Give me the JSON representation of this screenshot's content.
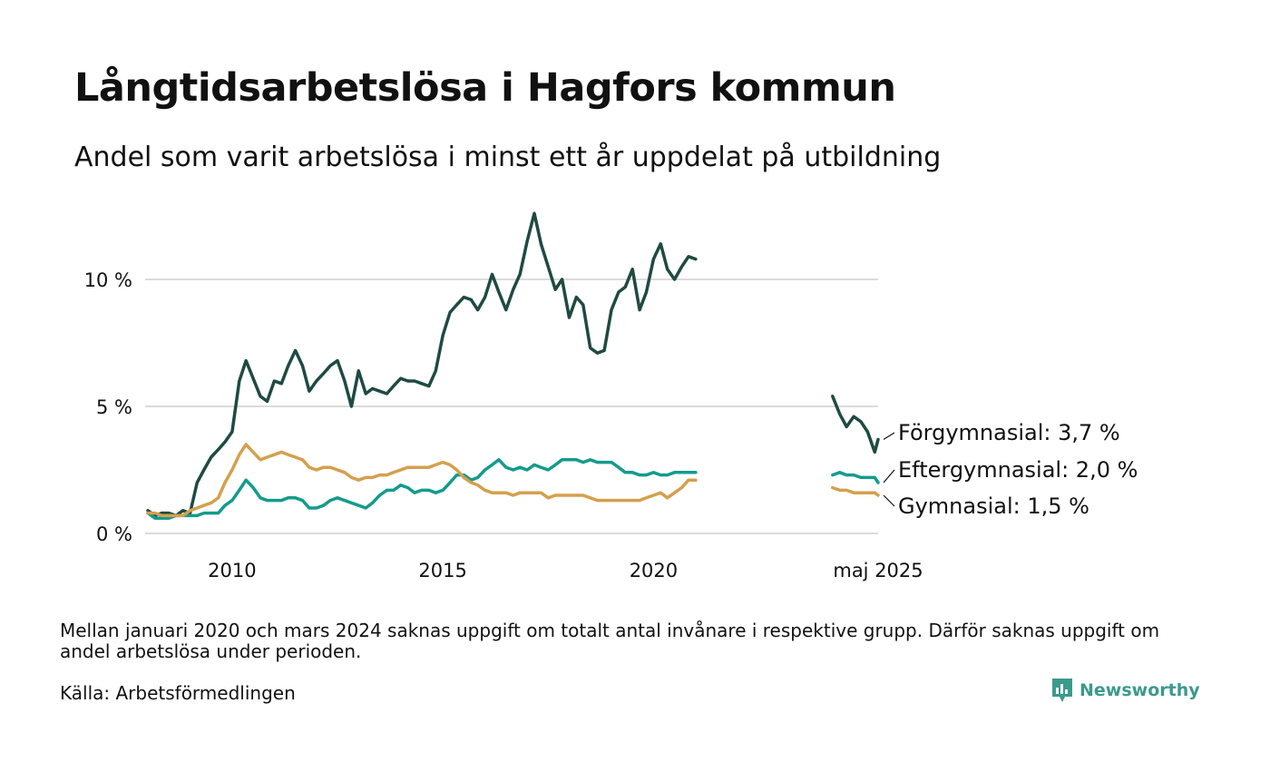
{
  "header": {
    "title": "Långtidsarbetslösa i Hagfors kommun",
    "subtitle": "Andel som varit arbetslösa i minst ett år uppdelat på utbildning"
  },
  "footer": {
    "note": "Mellan januari 2020 och mars 2024 saknas uppgift om totalt antal invånare i respektive grupp. Därför saknas uppgift om andel arbetslösa under perioden.",
    "source": "Källa: Arbetsförmedlingen",
    "brand": "Newsworthy",
    "brand_color": "#3a9a8c"
  },
  "chart_data": {
    "type": "line",
    "x_unit": "year",
    "y_unit": "%",
    "ylim": [
      0,
      12.8
    ],
    "y_ticks": [
      {
        "value": 0,
        "label": "0 %"
      },
      {
        "value": 5,
        "label": "5 %"
      },
      {
        "value": 10,
        "label": "10 %"
      }
    ],
    "x_ticks": [
      {
        "value": 2010.0,
        "label": "2010"
      },
      {
        "value": 2015.0,
        "label": "2015"
      },
      {
        "value": 2020.0,
        "label": "2020"
      },
      {
        "value": 2025.33,
        "label": "maj 2025"
      }
    ],
    "grid": true,
    "gap": "2021–2024",
    "series": [
      {
        "name": "Förgymnasial",
        "end_label": "Förgymnasial: 3,7 %",
        "color": "#1f4a43",
        "segments": [
          [
            [
              2008.0,
              0.9
            ],
            [
              2008.17,
              0.7
            ],
            [
              2008.33,
              0.8
            ],
            [
              2008.5,
              0.8
            ],
            [
              2008.67,
              0.7
            ],
            [
              2008.83,
              0.9
            ],
            [
              2009.0,
              0.8
            ],
            [
              2009.17,
              2.0
            ],
            [
              2009.33,
              2.5
            ],
            [
              2009.5,
              3.0
            ],
            [
              2009.67,
              3.3
            ],
            [
              2009.83,
              3.6
            ],
            [
              2010.0,
              4.0
            ],
            [
              2010.17,
              6.0
            ],
            [
              2010.33,
              6.8
            ],
            [
              2010.5,
              6.1
            ],
            [
              2010.67,
              5.4
            ],
            [
              2010.83,
              5.2
            ],
            [
              2011.0,
              6.0
            ],
            [
              2011.17,
              5.9
            ],
            [
              2011.33,
              6.6
            ],
            [
              2011.5,
              7.2
            ],
            [
              2011.67,
              6.6
            ],
            [
              2011.83,
              5.6
            ],
            [
              2012.0,
              6.0
            ],
            [
              2012.17,
              6.3
            ],
            [
              2012.33,
              6.6
            ],
            [
              2012.5,
              6.8
            ],
            [
              2012.67,
              6.0
            ],
            [
              2012.83,
              5.0
            ],
            [
              2013.0,
              6.4
            ],
            [
              2013.17,
              5.5
            ],
            [
              2013.33,
              5.7
            ],
            [
              2013.5,
              5.6
            ],
            [
              2013.67,
              5.5
            ],
            [
              2013.83,
              5.8
            ],
            [
              2014.0,
              6.1
            ],
            [
              2014.17,
              6.0
            ],
            [
              2014.33,
              6.0
            ],
            [
              2014.5,
              5.9
            ],
            [
              2014.67,
              5.8
            ],
            [
              2014.83,
              6.4
            ],
            [
              2015.0,
              7.8
            ],
            [
              2015.17,
              8.7
            ],
            [
              2015.33,
              9.0
            ],
            [
              2015.5,
              9.3
            ],
            [
              2015.67,
              9.2
            ],
            [
              2015.83,
              8.8
            ],
            [
              2016.0,
              9.3
            ],
            [
              2016.17,
              10.2
            ],
            [
              2016.33,
              9.5
            ],
            [
              2016.5,
              8.8
            ],
            [
              2016.67,
              9.6
            ],
            [
              2016.83,
              10.2
            ],
            [
              2017.0,
              11.5
            ],
            [
              2017.17,
              12.6
            ],
            [
              2017.33,
              11.4
            ],
            [
              2017.5,
              10.5
            ],
            [
              2017.67,
              9.6
            ],
            [
              2017.83,
              10.0
            ],
            [
              2018.0,
              8.5
            ],
            [
              2018.17,
              9.3
            ],
            [
              2018.33,
              9.0
            ],
            [
              2018.5,
              7.3
            ],
            [
              2018.67,
              7.1
            ],
            [
              2018.83,
              7.2
            ],
            [
              2019.0,
              8.8
            ],
            [
              2019.17,
              9.5
            ],
            [
              2019.33,
              9.7
            ],
            [
              2019.5,
              10.4
            ],
            [
              2019.67,
              8.8
            ],
            [
              2019.83,
              9.5
            ],
            [
              2020.0,
              10.8
            ],
            [
              2020.17,
              11.4
            ],
            [
              2020.33,
              10.4
            ],
            [
              2020.5,
              10.0
            ],
            [
              2020.67,
              10.5
            ],
            [
              2020.83,
              10.9
            ],
            [
              2021.0,
              10.8
            ]
          ],
          [
            [
              2024.25,
              5.4
            ],
            [
              2024.42,
              4.7
            ],
            [
              2024.58,
              4.2
            ],
            [
              2024.75,
              4.6
            ],
            [
              2024.92,
              4.4
            ],
            [
              2025.08,
              4.0
            ],
            [
              2025.25,
              3.2
            ],
            [
              2025.33,
              3.7
            ]
          ]
        ]
      },
      {
        "name": "Eftergymnasial",
        "end_label": "Eftergymnasial: 2,0 %",
        "color": "#149b8c",
        "segments": [
          [
            [
              2008.0,
              0.8
            ],
            [
              2008.17,
              0.6
            ],
            [
              2008.33,
              0.6
            ],
            [
              2008.5,
              0.6
            ],
            [
              2008.67,
              0.7
            ],
            [
              2008.83,
              0.7
            ],
            [
              2009.0,
              0.7
            ],
            [
              2009.17,
              0.7
            ],
            [
              2009.33,
              0.8
            ],
            [
              2009.5,
              0.8
            ],
            [
              2009.67,
              0.8
            ],
            [
              2009.83,
              1.1
            ],
            [
              2010.0,
              1.3
            ],
            [
              2010.17,
              1.7
            ],
            [
              2010.33,
              2.1
            ],
            [
              2010.5,
              1.8
            ],
            [
              2010.67,
              1.4
            ],
            [
              2010.83,
              1.3
            ],
            [
              2011.0,
              1.3
            ],
            [
              2011.17,
              1.3
            ],
            [
              2011.33,
              1.4
            ],
            [
              2011.5,
              1.4
            ],
            [
              2011.67,
              1.3
            ],
            [
              2011.83,
              1.0
            ],
            [
              2012.0,
              1.0
            ],
            [
              2012.17,
              1.1
            ],
            [
              2012.33,
              1.3
            ],
            [
              2012.5,
              1.4
            ],
            [
              2012.67,
              1.3
            ],
            [
              2012.83,
              1.2
            ],
            [
              2013.0,
              1.1
            ],
            [
              2013.17,
              1.0
            ],
            [
              2013.33,
              1.2
            ],
            [
              2013.5,
              1.5
            ],
            [
              2013.67,
              1.7
            ],
            [
              2013.83,
              1.7
            ],
            [
              2014.0,
              1.9
            ],
            [
              2014.17,
              1.8
            ],
            [
              2014.33,
              1.6
            ],
            [
              2014.5,
              1.7
            ],
            [
              2014.67,
              1.7
            ],
            [
              2014.83,
              1.6
            ],
            [
              2015.0,
              1.7
            ],
            [
              2015.17,
              2.0
            ],
            [
              2015.33,
              2.3
            ],
            [
              2015.5,
              2.3
            ],
            [
              2015.67,
              2.1
            ],
            [
              2015.83,
              2.2
            ],
            [
              2016.0,
              2.5
            ],
            [
              2016.17,
              2.7
            ],
            [
              2016.33,
              2.9
            ],
            [
              2016.5,
              2.6
            ],
            [
              2016.67,
              2.5
            ],
            [
              2016.83,
              2.6
            ],
            [
              2017.0,
              2.5
            ],
            [
              2017.17,
              2.7
            ],
            [
              2017.33,
              2.6
            ],
            [
              2017.5,
              2.5
            ],
            [
              2017.67,
              2.7
            ],
            [
              2017.83,
              2.9
            ],
            [
              2018.0,
              2.9
            ],
            [
              2018.17,
              2.9
            ],
            [
              2018.33,
              2.8
            ],
            [
              2018.5,
              2.9
            ],
            [
              2018.67,
              2.8
            ],
            [
              2018.83,
              2.8
            ],
            [
              2019.0,
              2.8
            ],
            [
              2019.17,
              2.6
            ],
            [
              2019.33,
              2.4
            ],
            [
              2019.5,
              2.4
            ],
            [
              2019.67,
              2.3
            ],
            [
              2019.83,
              2.3
            ],
            [
              2020.0,
              2.4
            ],
            [
              2020.17,
              2.3
            ],
            [
              2020.33,
              2.3
            ],
            [
              2020.5,
              2.4
            ],
            [
              2020.67,
              2.4
            ],
            [
              2020.83,
              2.4
            ],
            [
              2021.0,
              2.4
            ]
          ],
          [
            [
              2024.25,
              2.3
            ],
            [
              2024.42,
              2.4
            ],
            [
              2024.58,
              2.3
            ],
            [
              2024.75,
              2.3
            ],
            [
              2024.92,
              2.2
            ],
            [
              2025.08,
              2.2
            ],
            [
              2025.25,
              2.2
            ],
            [
              2025.33,
              2.0
            ]
          ]
        ]
      },
      {
        "name": "Gymnasial",
        "end_label": "Gymnasial: 1,5 %",
        "color": "#d4a04d",
        "segments": [
          [
            [
              2008.0,
              0.8
            ],
            [
              2008.17,
              0.8
            ],
            [
              2008.33,
              0.7
            ],
            [
              2008.5,
              0.7
            ],
            [
              2008.67,
              0.7
            ],
            [
              2008.83,
              0.7
            ],
            [
              2009.0,
              0.9
            ],
            [
              2009.17,
              1.0
            ],
            [
              2009.33,
              1.1
            ],
            [
              2009.5,
              1.2
            ],
            [
              2009.67,
              1.4
            ],
            [
              2009.83,
              2.0
            ],
            [
              2010.0,
              2.5
            ],
            [
              2010.17,
              3.1
            ],
            [
              2010.33,
              3.5
            ],
            [
              2010.5,
              3.2
            ],
            [
              2010.67,
              2.9
            ],
            [
              2010.83,
              3.0
            ],
            [
              2011.0,
              3.1
            ],
            [
              2011.17,
              3.2
            ],
            [
              2011.33,
              3.1
            ],
            [
              2011.5,
              3.0
            ],
            [
              2011.67,
              2.9
            ],
            [
              2011.83,
              2.6
            ],
            [
              2012.0,
              2.5
            ],
            [
              2012.17,
              2.6
            ],
            [
              2012.33,
              2.6
            ],
            [
              2012.5,
              2.5
            ],
            [
              2012.67,
              2.4
            ],
            [
              2012.83,
              2.2
            ],
            [
              2013.0,
              2.1
            ],
            [
              2013.17,
              2.2
            ],
            [
              2013.33,
              2.2
            ],
            [
              2013.5,
              2.3
            ],
            [
              2013.67,
              2.3
            ],
            [
              2013.83,
              2.4
            ],
            [
              2014.0,
              2.5
            ],
            [
              2014.17,
              2.6
            ],
            [
              2014.33,
              2.6
            ],
            [
              2014.5,
              2.6
            ],
            [
              2014.67,
              2.6
            ],
            [
              2014.83,
              2.7
            ],
            [
              2015.0,
              2.8
            ],
            [
              2015.17,
              2.7
            ],
            [
              2015.33,
              2.5
            ],
            [
              2015.5,
              2.2
            ],
            [
              2015.67,
              2.0
            ],
            [
              2015.83,
              1.9
            ],
            [
              2016.0,
              1.7
            ],
            [
              2016.17,
              1.6
            ],
            [
              2016.33,
              1.6
            ],
            [
              2016.5,
              1.6
            ],
            [
              2016.67,
              1.5
            ],
            [
              2016.83,
              1.6
            ],
            [
              2017.0,
              1.6
            ],
            [
              2017.17,
              1.6
            ],
            [
              2017.33,
              1.6
            ],
            [
              2017.5,
              1.4
            ],
            [
              2017.67,
              1.5
            ],
            [
              2017.83,
              1.5
            ],
            [
              2018.0,
              1.5
            ],
            [
              2018.17,
              1.5
            ],
            [
              2018.33,
              1.5
            ],
            [
              2018.5,
              1.4
            ],
            [
              2018.67,
              1.3
            ],
            [
              2018.83,
              1.3
            ],
            [
              2019.0,
              1.3
            ],
            [
              2019.17,
              1.3
            ],
            [
              2019.33,
              1.3
            ],
            [
              2019.5,
              1.3
            ],
            [
              2019.67,
              1.3
            ],
            [
              2019.83,
              1.4
            ],
            [
              2020.0,
              1.5
            ],
            [
              2020.17,
              1.6
            ],
            [
              2020.33,
              1.4
            ],
            [
              2020.5,
              1.6
            ],
            [
              2020.67,
              1.8
            ],
            [
              2020.83,
              2.1
            ],
            [
              2021.0,
              2.1
            ]
          ],
          [
            [
              2024.25,
              1.8
            ],
            [
              2024.42,
              1.7
            ],
            [
              2024.58,
              1.7
            ],
            [
              2024.75,
              1.6
            ],
            [
              2024.92,
              1.6
            ],
            [
              2025.08,
              1.6
            ],
            [
              2025.25,
              1.6
            ],
            [
              2025.33,
              1.5
            ]
          ]
        ]
      }
    ]
  }
}
